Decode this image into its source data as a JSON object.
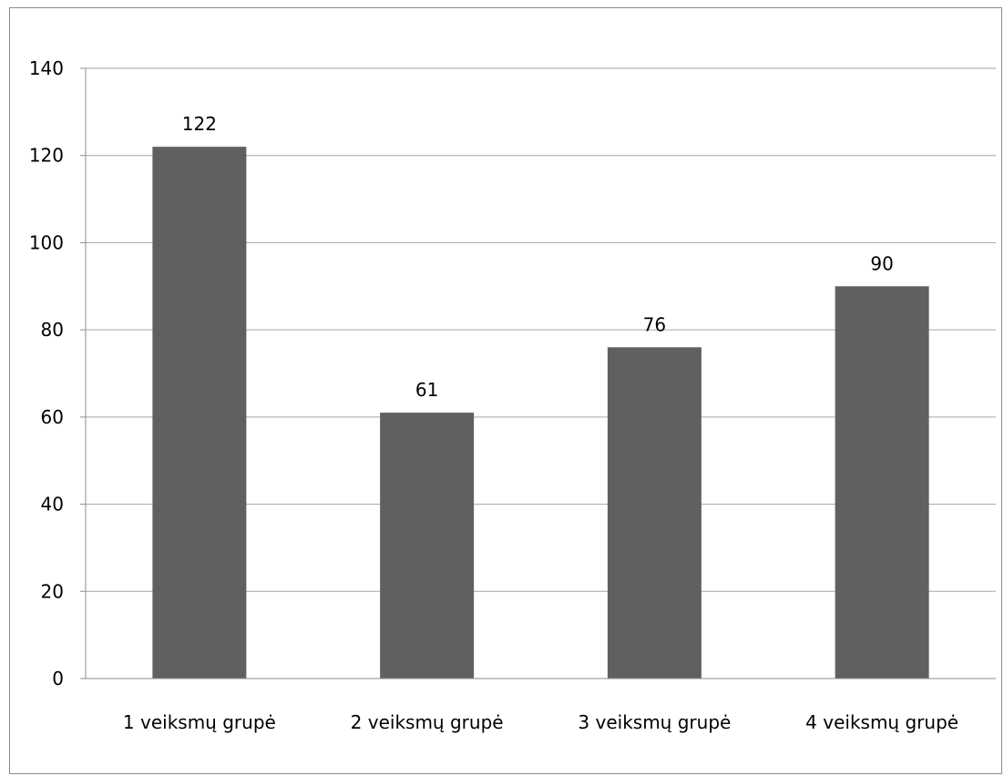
{
  "chart_data": {
    "type": "bar",
    "categories": [
      "1 veiksmų grupė",
      "2 veiksmų grupė",
      "3 veiksmų grupė",
      "4 veiksmų grupė"
    ],
    "values": [
      122,
      61,
      76,
      90
    ],
    "ylim": [
      0,
      140
    ],
    "yticks": [
      0,
      20,
      40,
      60,
      80,
      100,
      120,
      140
    ],
    "grid": true,
    "legend": "none",
    "bar_color": "#606060",
    "gridline_color": "#a6a6a6"
  }
}
